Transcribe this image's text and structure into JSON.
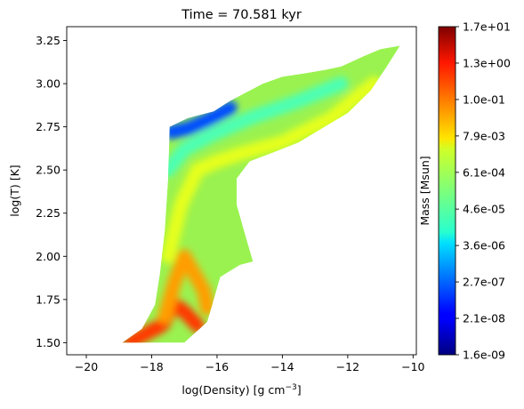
{
  "chart_data": {
    "type": "heatmap",
    "title": "Time = 70.581 kyr",
    "xlabel": "log(Density) [g cm",
    "xlabel_sup": "−3",
    "xlabel_close": "]",
    "ylabel": "log(T) [K]",
    "colorbar_label": "Mass [Msun]",
    "colormap": "jet",
    "grid": false,
    "xlim": [
      -20.6,
      -9.9
    ],
    "ylim": [
      1.43,
      3.33
    ],
    "x_ticks": [
      {
        "value": -20,
        "label": "−20"
      },
      {
        "value": -18,
        "label": "−18"
      },
      {
        "value": -16,
        "label": "−16"
      },
      {
        "value": -14,
        "label": "−14"
      },
      {
        "value": -12,
        "label": "−12"
      },
      {
        "value": -10,
        "label": "−10"
      }
    ],
    "y_ticks": [
      {
        "value": 1.5,
        "label": "1.50"
      },
      {
        "value": 1.75,
        "label": "1.75"
      },
      {
        "value": 2.0,
        "label": "2.00"
      },
      {
        "value": 2.25,
        "label": "2.25"
      },
      {
        "value": 2.5,
        "label": "2.50"
      },
      {
        "value": 2.75,
        "label": "2.75"
      },
      {
        "value": 3.0,
        "label": "3.00"
      },
      {
        "value": 3.25,
        "label": "3.25"
      }
    ],
    "colorbar_ticks": [
      {
        "frac": 0.0,
        "label": "1.6e-09"
      },
      {
        "frac": 0.111,
        "label": "2.1e-08"
      },
      {
        "frac": 0.222,
        "label": "2.7e-07"
      },
      {
        "frac": 0.333,
        "label": "3.6e-06"
      },
      {
        "frac": 0.444,
        "label": "4.6e-05"
      },
      {
        "frac": 0.556,
        "label": "6.1e-04"
      },
      {
        "frac": 0.667,
        "label": "7.9e-03"
      },
      {
        "frac": 0.778,
        "label": "1.0e-01"
      },
      {
        "frac": 0.889,
        "label": "1.3e+00"
      },
      {
        "frac": 1.0,
        "label": "1.7e+01"
      }
    ],
    "region_envelope": {
      "upper": [
        [
          -18.9,
          1.5
        ],
        [
          -18.3,
          1.58
        ],
        [
          -17.9,
          1.72
        ],
        [
          -17.75,
          1.9
        ],
        [
          -17.6,
          2.15
        ],
        [
          -17.5,
          2.45
        ],
        [
          -17.45,
          2.75
        ],
        [
          -16.9,
          2.8
        ],
        [
          -16.1,
          2.84
        ],
        [
          -15.6,
          2.9
        ],
        [
          -15.1,
          2.95
        ],
        [
          -14.6,
          3.0
        ],
        [
          -14.0,
          3.04
        ],
        [
          -13.3,
          3.06
        ],
        [
          -12.7,
          3.08
        ],
        [
          -12.2,
          3.1
        ],
        [
          -11.5,
          3.16
        ],
        [
          -11.0,
          3.2
        ],
        [
          -10.4,
          3.22
        ]
      ],
      "lower": [
        [
          -17.0,
          1.5
        ],
        [
          -16.3,
          1.62
        ],
        [
          -16.1,
          1.75
        ],
        [
          -15.9,
          1.88
        ],
        [
          -15.3,
          1.95
        ],
        [
          -14.9,
          1.97
        ],
        [
          -15.1,
          2.1
        ],
        [
          -15.4,
          2.3
        ],
        [
          -15.4,
          2.45
        ],
        [
          -15.0,
          2.55
        ],
        [
          -14.3,
          2.6
        ],
        [
          -13.5,
          2.66
        ],
        [
          -12.8,
          2.74
        ],
        [
          -12.0,
          2.83
        ],
        [
          -11.3,
          2.96
        ],
        [
          -10.8,
          3.1
        ],
        [
          -10.4,
          3.22
        ]
      ]
    },
    "intensity_ridges": [
      {
        "color_frac": 0.95,
        "points": [
          [
            -18.9,
            1.5
          ],
          [
            -18.3,
            1.52
          ],
          [
            -17.8,
            1.56
          ],
          [
            -17.5,
            1.6
          ]
        ]
      },
      {
        "color_frac": 0.82,
        "points": [
          [
            -18.6,
            1.51
          ],
          [
            -17.7,
            1.6
          ],
          [
            -17.3,
            1.72
          ],
          [
            -17.0,
            1.68
          ],
          [
            -16.6,
            1.6
          ]
        ]
      },
      {
        "color_frac": 0.72,
        "points": [
          [
            -17.6,
            1.65
          ],
          [
            -17.3,
            1.85
          ],
          [
            -17.0,
            2.0
          ],
          [
            -16.4,
            1.8
          ],
          [
            -16.3,
            1.7
          ]
        ]
      },
      {
        "color_frac": 0.6,
        "points": [
          [
            -17.5,
            2.0
          ],
          [
            -17.1,
            2.3
          ],
          [
            -16.6,
            2.5
          ],
          [
            -16.0,
            2.55
          ],
          [
            -15.2,
            2.6
          ],
          [
            -14.0,
            2.66
          ],
          [
            -12.5,
            2.8
          ],
          [
            -11.2,
            3.0
          ]
        ]
      },
      {
        "color_frac": 0.45,
        "points": [
          [
            -17.5,
            2.5
          ],
          [
            -17.0,
            2.62
          ],
          [
            -16.2,
            2.7
          ],
          [
            -15.0,
            2.8
          ],
          [
            -13.5,
            2.9
          ],
          [
            -12.2,
            3.0
          ]
        ]
      },
      {
        "color_frac": 0.2,
        "points": [
          [
            -17.4,
            2.72
          ],
          [
            -16.9,
            2.74
          ],
          [
            -16.3,
            2.79
          ],
          [
            -15.6,
            2.86
          ]
        ]
      }
    ]
  }
}
